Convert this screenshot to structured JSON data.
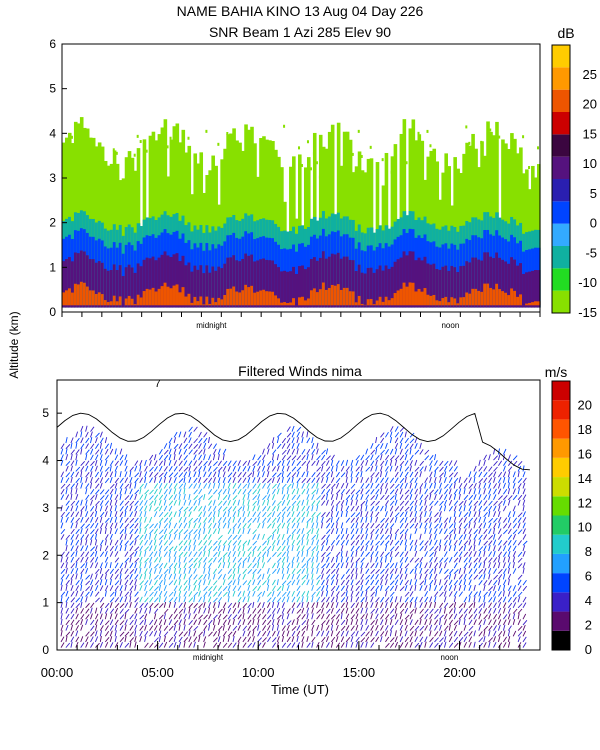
{
  "header": {
    "title_line1": "NAME BAHIA KINO   13 Aug 04 Day 226",
    "title_line2": "SNR Beam 1 Azi 285 Elev 90"
  },
  "y_axis_label": "Altitude (km)",
  "chart_data": [
    {
      "type": "heatmap",
      "title": "NAME BAHIA KINO   13 Aug 04 Day 226",
      "subtitle": "SNR Beam 1 Azi 285 Elev 90",
      "xlabel": "",
      "ylabel": "Altitude (km)",
      "xlim": [
        0,
        24
      ],
      "ylim": [
        0,
        6
      ],
      "y_ticks": [
        "0",
        "1",
        "2",
        "3",
        "4",
        "5",
        "6"
      ],
      "x_tick_annotations": [
        {
          "x": 7.5,
          "label": "midnight"
        },
        {
          "x": 19.5,
          "label": "noon"
        }
      ],
      "colorbar": {
        "unit": "dB",
        "range": [
          -15,
          30
        ],
        "tick_labels": [
          "25",
          "20",
          "15",
          "10",
          "5",
          "0",
          "-5",
          "-10",
          "-15"
        ],
        "colors": [
          "#88e000",
          "#22dd22",
          "#10b0a0",
          "#33aaff",
          "#0044ff",
          "#2a1fb0",
          "#55127e",
          "#3b0640",
          "#cc0000",
          "#ee5500",
          "#ff9900",
          "#ffcc00"
        ]
      },
      "layers": [
        {
          "dB": -14,
          "color": "#88e000",
          "from_to_km": "0.1-3.7",
          "description_times": [
            0,
            24
          ]
        },
        {
          "dB": -8,
          "color": "#10b0a0",
          "from_to_km": "0.1-2.0"
        },
        {
          "dB": 0,
          "color": "#0044ff",
          "from_to_km": "0.1-1.6"
        },
        {
          "dB": 10,
          "color": "#55127e",
          "from_to_km": "0.1-1.1"
        },
        {
          "dB": 20,
          "color": "#ee5500",
          "from_to_km": "0.15-0.4"
        }
      ]
    },
    {
      "type": "heatmap",
      "title": "Filtered Winds nima",
      "xlabel": "Time (UT)",
      "ylabel": "Altitude (km)",
      "xlim": [
        0,
        24
      ],
      "ylim": [
        0,
        5.7
      ],
      "x_ticks": [
        "00:00",
        "05:00",
        "10:00",
        "15:00",
        "20:00"
      ],
      "x_tick_values": [
        0,
        5,
        10,
        15,
        20
      ],
      "y_ticks": [
        "0",
        "1",
        "2",
        "3",
        "4",
        "5"
      ],
      "x_tick_annotations": [
        {
          "x": 7.5,
          "label": "midnight"
        },
        {
          "x": 19.5,
          "label": "noon"
        }
      ],
      "annotation_top": "7",
      "colorbar": {
        "unit": "m/s",
        "range": [
          0,
          22
        ],
        "tick_labels": [
          "20",
          "18",
          "16",
          "14",
          "12",
          "10",
          "8",
          "6",
          "4",
          "2",
          "0"
        ],
        "colors": [
          "#000000",
          "#5a0a6e",
          "#3a20c8",
          "#0044ff",
          "#22a0ff",
          "#22cccc",
          "#22cc66",
          "#66dd00",
          "#ccdd00",
          "#ffcc00",
          "#ff9900",
          "#ff5500",
          "#ee2200",
          "#cc0000"
        ]
      },
      "wind_top_km": 4.3,
      "wind_speed_typical_ms": [
        2,
        8
      ]
    }
  ]
}
